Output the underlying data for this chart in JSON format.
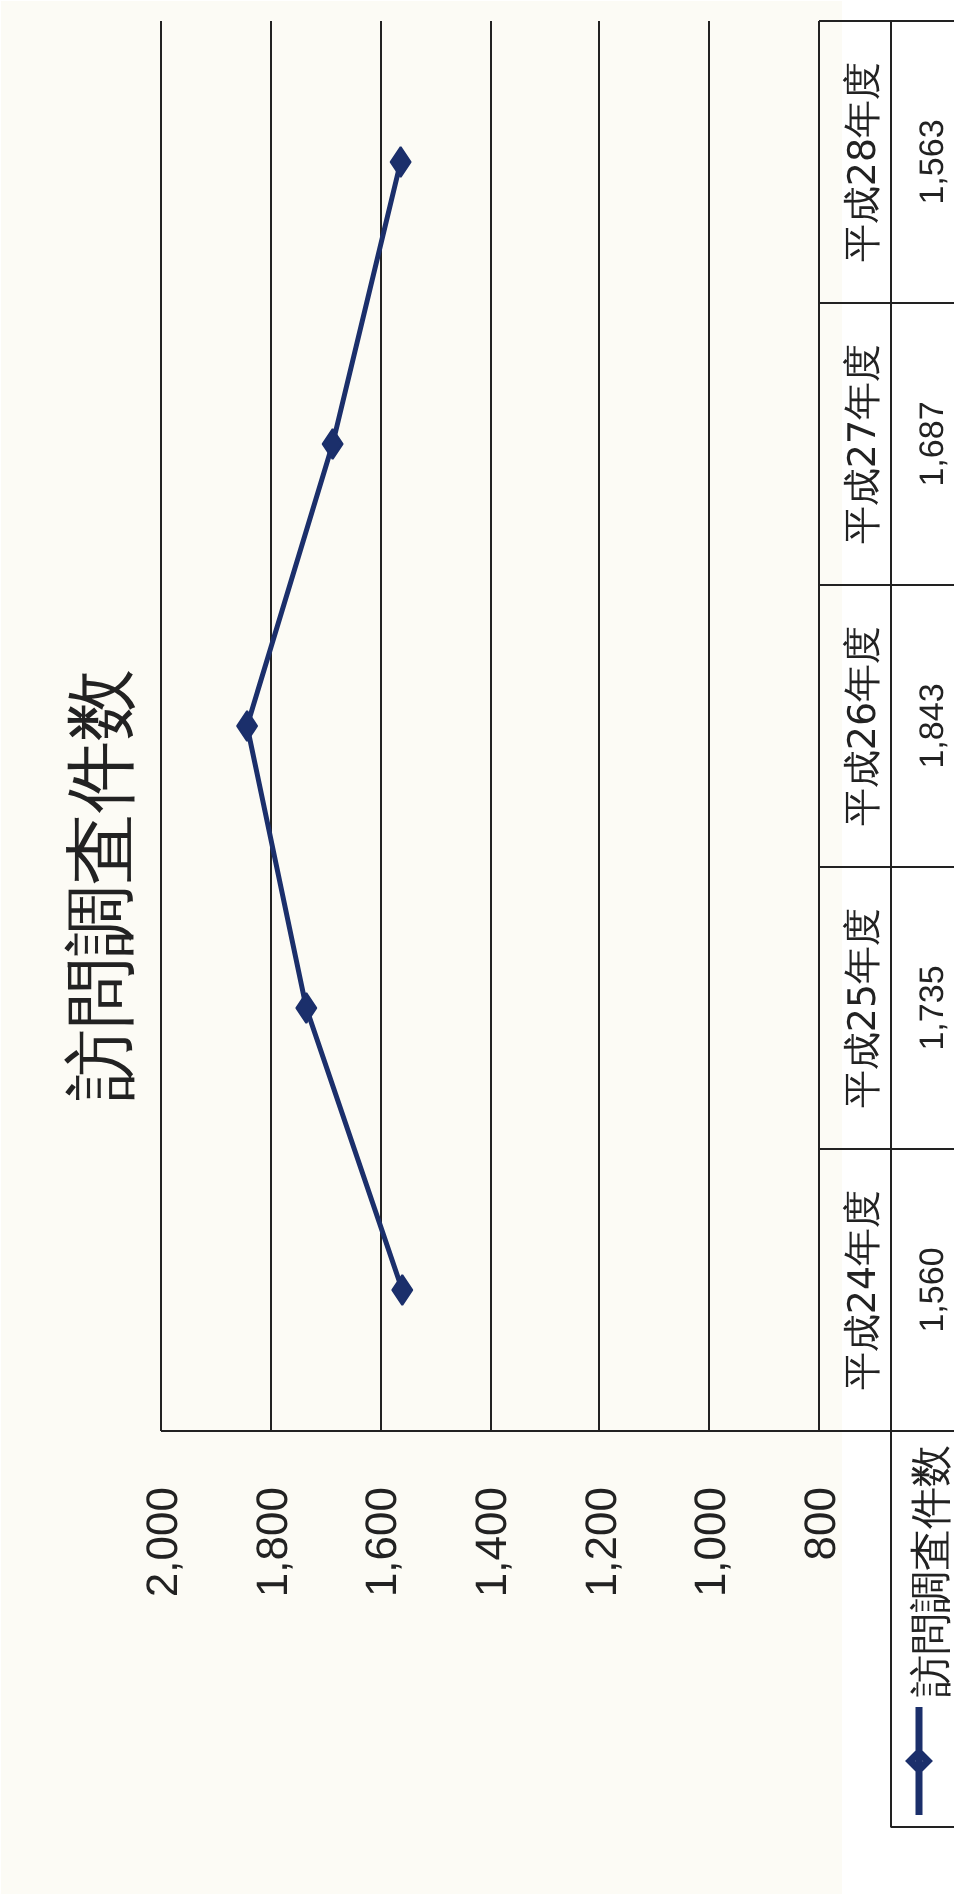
{
  "chart_data": {
    "type": "line",
    "orientation": "horizontal",
    "title": "訪問調査件数",
    "categories": [
      "平成28年度",
      "平成27年度",
      "平成26年度",
      "平成25年度",
      "平成24年度"
    ],
    "series": [
      {
        "name": "訪問調査件数",
        "color": "#1b2f6b",
        "values": [
          1563,
          1687,
          1843,
          1735,
          1560
        ],
        "value_labels": [
          "1,563",
          "1,687",
          "1,843",
          "1,735",
          "1,560"
        ]
      }
    ],
    "xlim": [
      2000,
      800
    ],
    "xticks": [
      {
        "value": 2000,
        "label": "2,000"
      },
      {
        "value": 1800,
        "label": "1,800"
      },
      {
        "value": 1600,
        "label": "1,600"
      },
      {
        "value": 1400,
        "label": "1,400"
      },
      {
        "value": 1200,
        "label": "1,200"
      },
      {
        "value": 1000,
        "label": "1,000"
      },
      800
    ],
    "grid": "x",
    "legend": "bottom",
    "marker": "diamond",
    "line_style": "solid"
  }
}
